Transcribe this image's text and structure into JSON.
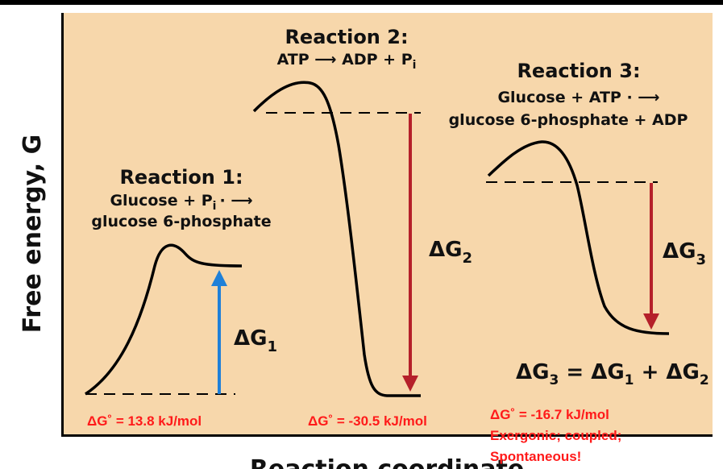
{
  "axes": {
    "y_label": "Free energy, G",
    "x_label": "Reaction coordinate"
  },
  "reaction1": {
    "title": "Reaction 1:",
    "line1": "Glucose + P",
    "line1_sub": "i",
    "line1_arrow": "· ⟶",
    "line2": "glucose 6-phosphate",
    "dg_symbol": "ΔG",
    "dg_sub": "1",
    "dg_value": "ΔG˚ = 13.8 kJ/mol"
  },
  "reaction2": {
    "title": "Reaction 2:",
    "line1": "ATP ⟶ ADP + P",
    "line1_sub": "i",
    "dg_symbol": "ΔG",
    "dg_sub": "2",
    "dg_value": "ΔG˚ = -30.5 kJ/mol"
  },
  "reaction3": {
    "title": "Reaction 3:",
    "line1": "Glucose + ATP · ⟶",
    "line2": "glucose 6-phosphate + ADP",
    "dg_symbol": "ΔG",
    "dg_sub": "3",
    "sum_equation": {
      "lhs": "ΔG",
      "lhs_sub": "3",
      "eq": " = ",
      "t1": "ΔG",
      "t1_sub": "1",
      "plus": " + ",
      "t2": "ΔG",
      "t2_sub": "2"
    },
    "dg_value": "ΔG˚ = -16.7 kJ/mol",
    "note1": "Exergonic; coupled;",
    "note2": "Spontaneous!"
  },
  "colors": {
    "background": "#f7d7ab",
    "curve": "#000000",
    "up_arrow": "#1f80d8",
    "down_arrow": "#b5202a",
    "value_text": "#ff1a1a"
  }
}
